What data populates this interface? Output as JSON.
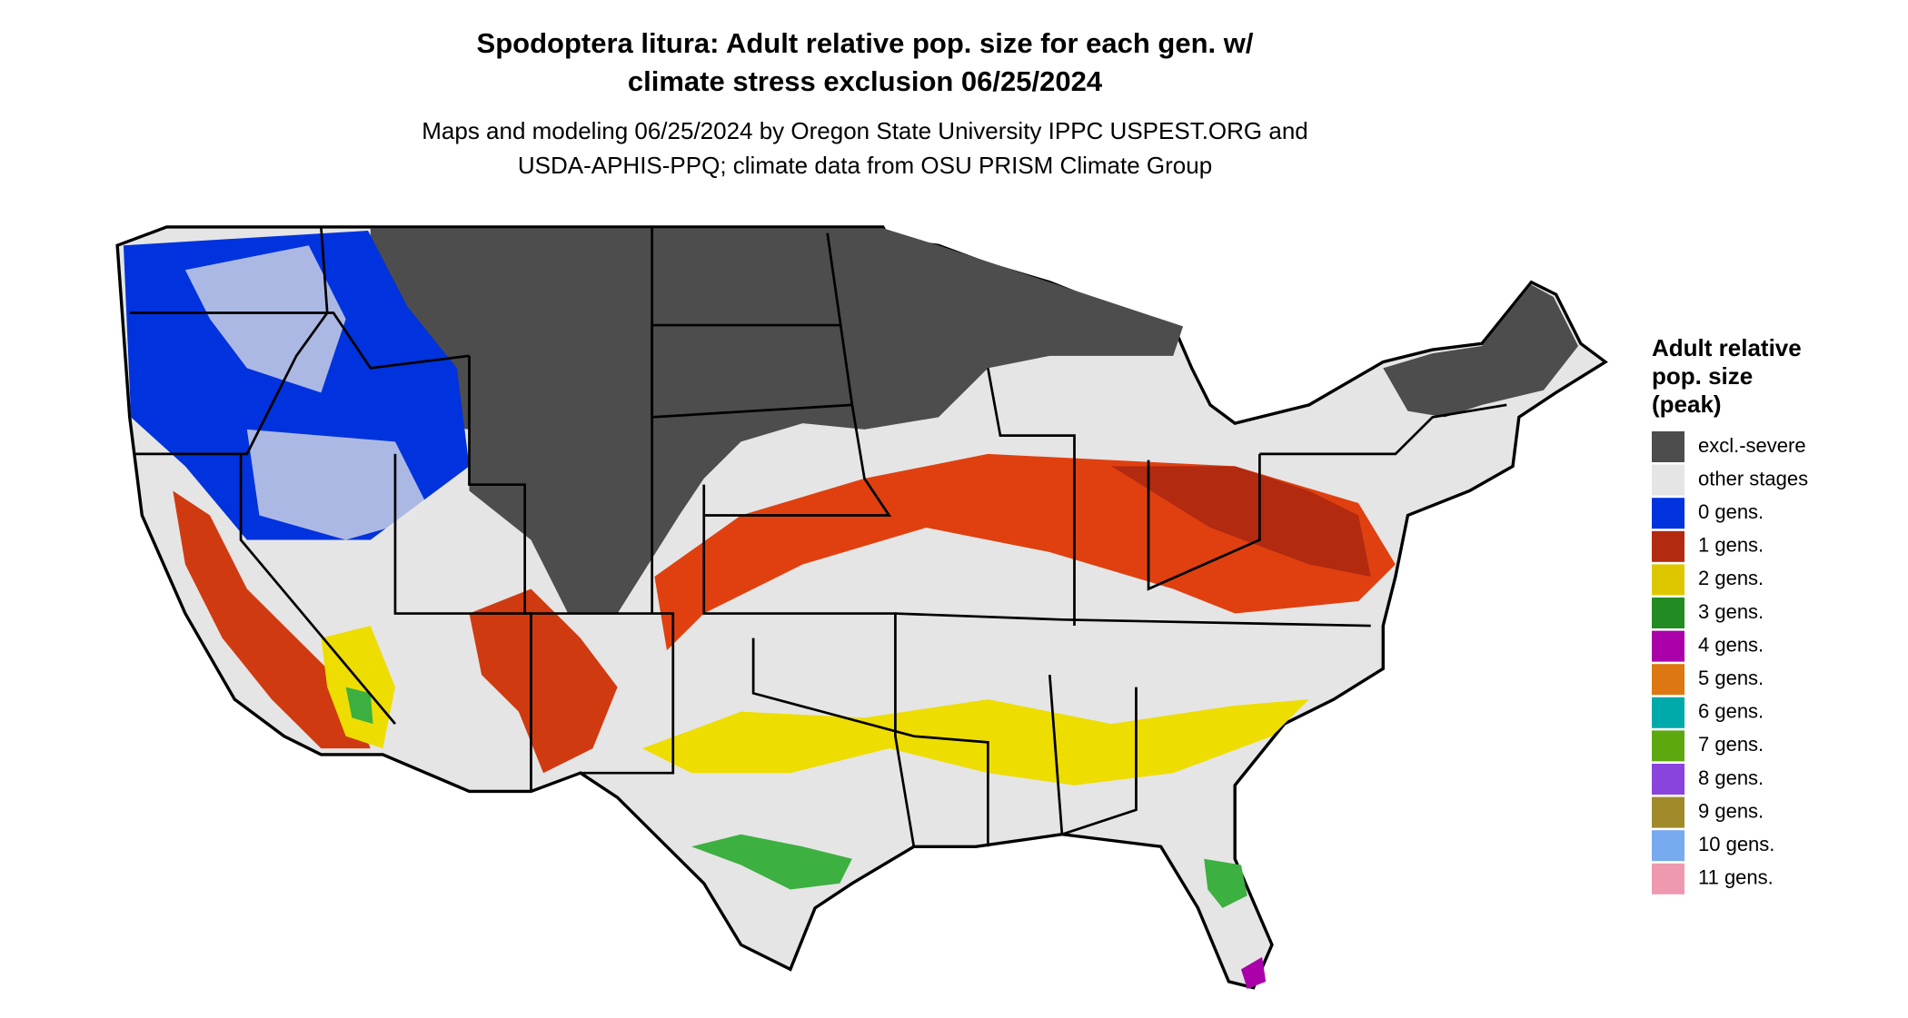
{
  "header": {
    "title": [
      "Spodoptera litura: Adult relative pop. size for each gen. w/",
      "climate stress exclusion 06/25/2024"
    ],
    "subtitle": [
      "Maps and modeling 06/25/2024 by Oregon State University IPPC USPEST.ORG and",
      "USDA-APHIS-PPQ; climate data from OSU PRISM Climate Group"
    ]
  },
  "legend": {
    "title": [
      "Adult relative",
      "pop. size",
      "(peak)"
    ],
    "items": [
      {
        "label": "excl.-severe",
        "color": "#4d4d4d"
      },
      {
        "label": "other stages",
        "color": "#e5e5e5"
      },
      {
        "label": "0 gens.",
        "color": "#0033dd"
      },
      {
        "label": "1 gens.",
        "color": "#b22a10"
      },
      {
        "label": "2 gens.",
        "color": "#ddc800"
      },
      {
        "label": "3 gens.",
        "color": "#228b22"
      },
      {
        "label": "4 gens.",
        "color": "#aa00aa"
      },
      {
        "label": "5 gens.",
        "color": "#dd7711"
      },
      {
        "label": "6 gens.",
        "color": "#00aaaa"
      },
      {
        "label": "7 gens.",
        "color": "#5ea80f"
      },
      {
        "label": "8 gens.",
        "color": "#8844dd"
      },
      {
        "label": "9 gens.",
        "color": "#a08a2a"
      },
      {
        "label": "10 gens.",
        "color": "#77aaee"
      },
      {
        "label": "11 gens.",
        "color": "#ee99b0"
      }
    ]
  }
}
